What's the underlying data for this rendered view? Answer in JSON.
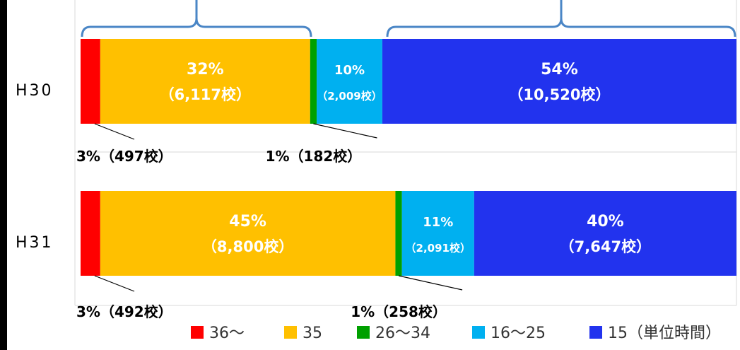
{
  "colors": {
    "36~": "#ff0000",
    "35": "#ffc000",
    "26~34": "#00a000",
    "16~25": "#00b0f0",
    "15": "#2233ee",
    "bracket": "#4a86c6",
    "grid": "#d9d9d9"
  },
  "chart_data": {
    "type": "bar",
    "orientation": "horizontal",
    "stacked": true,
    "percent_stacked": true,
    "title": "",
    "xlabel": "",
    "ylabel": "",
    "categories": [
      "H30",
      "H31"
    ],
    "series": [
      {
        "name": "36～",
        "color": "#ff0000",
        "values": [
          3,
          3
        ],
        "counts": [
          497,
          492
        ],
        "labels": [
          "3%（497校）",
          "3%（492校）"
        ],
        "label_pos": "outside"
      },
      {
        "name": "35",
        "color": "#ffc000",
        "values": [
          32,
          45
        ],
        "counts": [
          6117,
          8800
        ],
        "labels": [
          [
            "32%",
            "（6,117校）"
          ],
          [
            "45%",
            "（8,800校）"
          ]
        ],
        "label_pos": "inside"
      },
      {
        "name": "26～34",
        "color": "#00a000",
        "values": [
          1,
          1
        ],
        "counts": [
          182,
          258
        ],
        "labels": [
          "1%（182校）",
          "1%（258校）"
        ],
        "label_pos": "outside"
      },
      {
        "name": "16～25",
        "color": "#00b0f0",
        "values": [
          10,
          11
        ],
        "counts": [
          2009,
          2091
        ],
        "labels": [
          [
            "10%",
            "（2,009校）"
          ],
          [
            "11%",
            "（2,091校）"
          ]
        ],
        "label_pos": "inside"
      },
      {
        "name": "15（単位時間）",
        "color": "#2233ee",
        "values": [
          54,
          40
        ],
        "counts": [
          10520,
          7647
        ],
        "labels": [
          [
            "54%",
            "（10,520校）"
          ],
          [
            "40%",
            "（7,647校）"
          ]
        ],
        "label_pos": "inside"
      }
    ],
    "legend": {
      "position": "bottom-right",
      "entries": [
        "36～",
        "35",
        "26～34",
        "16～25",
        "15（単位時間）"
      ]
    },
    "annotations": [
      "brace over 36～ and 35 (H30)",
      "brace over 16～25 and 15 (H30)"
    ],
    "grid": true
  }
}
